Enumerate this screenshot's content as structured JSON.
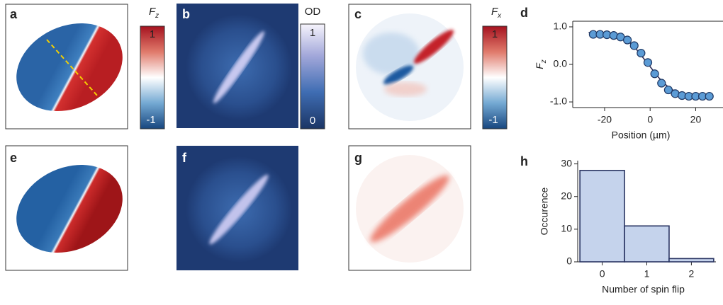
{
  "panel_labels": [
    "a",
    "b",
    "c",
    "d",
    "e",
    "f",
    "g",
    "h"
  ],
  "colorbars": [
    {
      "symbol": "F",
      "subscript": "z",
      "top": "1",
      "bottom": "-1"
    },
    {
      "symbol": "OD",
      "top": "1",
      "bottom": "0"
    },
    {
      "symbol": "F",
      "subscript": "x",
      "top": "1",
      "bottom": "-1"
    }
  ],
  "chart_data": [
    {
      "type": "line",
      "xlabel": "Position (µm)",
      "ylabel": "F",
      "ylabel_subscript": "z",
      "series": [
        {
          "marker": "circle",
          "color": "#5b9bd5",
          "edgecolor": "#1f3864",
          "x": [
            -25,
            -22,
            -19,
            -16,
            -13,
            -10,
            -7,
            -4,
            -1,
            2,
            5,
            8,
            11,
            14,
            17,
            20,
            23,
            26
          ],
          "values": [
            0.8,
            0.8,
            0.79,
            0.77,
            0.73,
            0.65,
            0.5,
            0.3,
            0.05,
            -0.25,
            -0.5,
            -0.68,
            -0.78,
            -0.83,
            -0.85,
            -0.85,
            -0.85,
            -0.85
          ]
        },
        {
          "color": "#2a2a55",
          "x": [
            -27,
            -24,
            -21,
            -18,
            -15,
            -12,
            -9,
            -6,
            -3,
            0,
            3,
            6,
            9,
            12,
            15,
            18,
            21,
            24,
            27
          ],
          "values": [
            0.85,
            0.84,
            0.83,
            0.81,
            0.77,
            0.7,
            0.58,
            0.4,
            0.17,
            -0.06,
            -0.3,
            -0.5,
            -0.65,
            -0.75,
            -0.81,
            -0.84,
            -0.86,
            -0.87,
            -0.87
          ]
        }
      ],
      "xlim": [
        -34,
        32
      ],
      "ylim": [
        -1.15,
        1.15
      ],
      "xticks": [
        -20,
        0,
        20
      ],
      "yticks": [
        {
          "value": -1,
          "label": "-1.0"
        },
        {
          "value": 0,
          "label": "0.0"
        },
        {
          "value": 1,
          "label": "1.0"
        }
      ]
    },
    {
      "type": "histogram",
      "xlabel": "Number of spin flip",
      "ylabel": "Occurence",
      "bins": [
        -0.5,
        0.5,
        1.5,
        2.5
      ],
      "values": [
        28,
        11,
        1
      ],
      "color": "#c5d3ec",
      "edgecolor": "#2a3563",
      "xlim": [
        -0.55,
        2.55
      ],
      "ylim": [
        0,
        31
      ],
      "xticks": [
        0,
        1,
        2
      ],
      "yticks": [
        0,
        10,
        20,
        30
      ]
    }
  ]
}
